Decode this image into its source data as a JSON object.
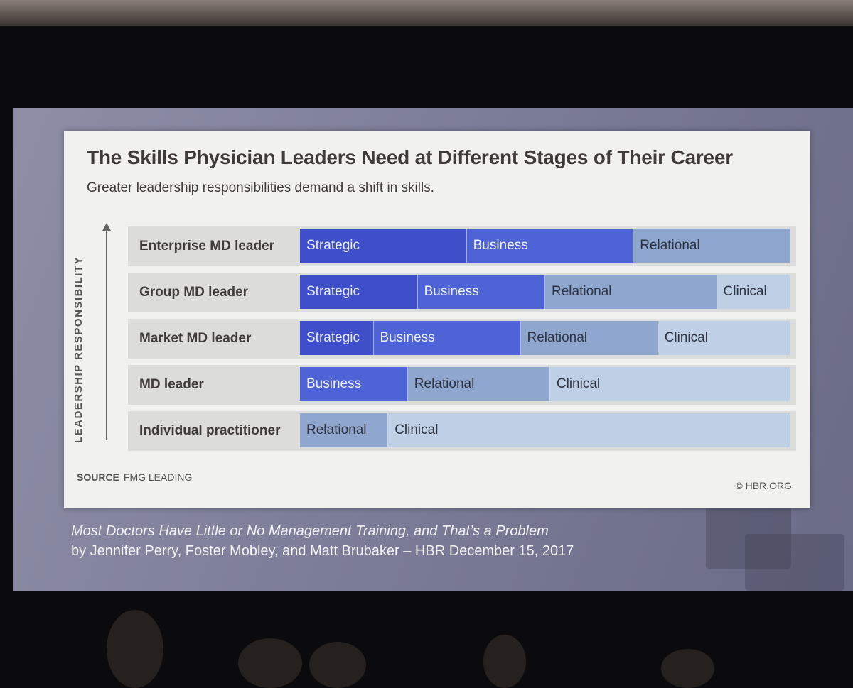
{
  "chart_data": {
    "type": "bar",
    "title": "The Skills Physician Leaders Need at Different Stages of Their Career",
    "subtitle": "Greater leadership responsibilities demand a shift in skills.",
    "ylabel": "LEADERSHIP RESPONSIBILITY",
    "rows": [
      {
        "label": "Enterprise MD leader",
        "segments": [
          {
            "name": "Strategic",
            "value": 34
          },
          {
            "name": "Business",
            "value": 34
          },
          {
            "name": "Relational",
            "value": 32
          }
        ]
      },
      {
        "label": "Group MD leader",
        "segments": [
          {
            "name": "Strategic",
            "value": 24
          },
          {
            "name": "Business",
            "value": 26
          },
          {
            "name": "Relational",
            "value": 35
          },
          {
            "name": "Clinical",
            "value": 15
          }
        ]
      },
      {
        "label": "Market MD leader",
        "segments": [
          {
            "name": "Strategic",
            "value": 15
          },
          {
            "name": "Business",
            "value": 30
          },
          {
            "name": "Relational",
            "value": 28
          },
          {
            "name": "Clinical",
            "value": 27
          }
        ]
      },
      {
        "label": "MD leader",
        "segments": [
          {
            "name": "Business",
            "value": 22
          },
          {
            "name": "Relational",
            "value": 29
          },
          {
            "name": "Clinical",
            "value": 49
          }
        ]
      },
      {
        "label": "Individual practitioner",
        "segments": [
          {
            "name": "Relational",
            "value": 18
          },
          {
            "name": "Clinical",
            "value": 82
          }
        ]
      }
    ],
    "colors": {
      "Strategic": "#3f4fc9",
      "Business": "#4d63d6",
      "Relational": "#8fa6cf",
      "Clinical": "#bdd0e6"
    },
    "text_colors": {
      "Strategic": "#e8ebff",
      "Business": "#eef0ff",
      "Relational": "#2f3340",
      "Clinical": "#2f3340"
    },
    "source_label": "SOURCE",
    "source_value": "FMG LEADING",
    "copyright": "© HBR.ORG"
  },
  "caption": {
    "title": "Most Doctors Have Little or No Management Training, and That’s a Problem",
    "byline": "by Jennifer Perry, Foster Mobley, and Matt Brubaker – HBR December 15, 2017"
  }
}
